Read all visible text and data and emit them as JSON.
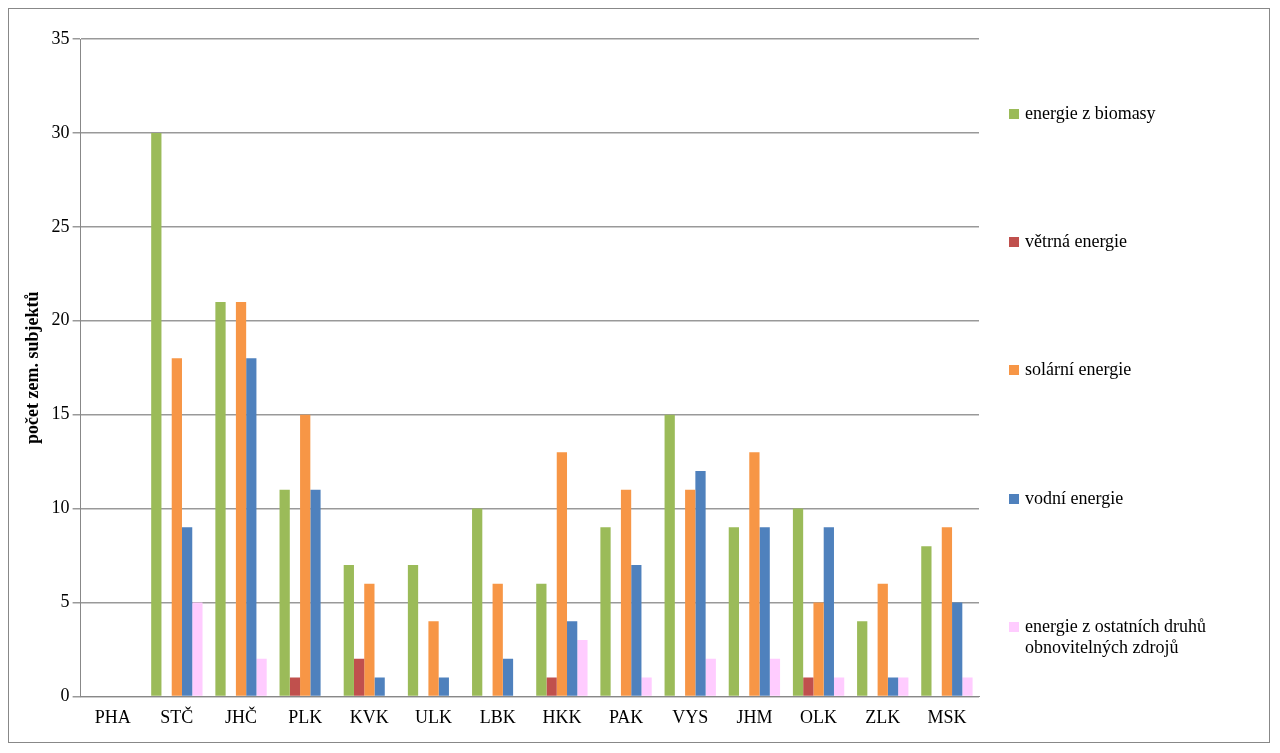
{
  "chart_data": {
    "type": "bar",
    "ylabel": "počet zem. subjektů",
    "categories": [
      "PHA",
      "STČ",
      "JHČ",
      "PLK",
      "KVK",
      "ULK",
      "LBK",
      "HKK",
      "PAK",
      "VYS",
      "JHM",
      "OLK",
      "ZLK",
      "MSK"
    ],
    "series": [
      {
        "name": "energie z biomasy",
        "color": "#9bbb59",
        "values": [
          0,
          30,
          21,
          11,
          7,
          7,
          10,
          6,
          9,
          15,
          9,
          10,
          4,
          8
        ]
      },
      {
        "name": "větrná energie",
        "color": "#c0504d",
        "values": [
          0,
          0,
          0,
          1,
          2,
          0,
          0,
          1,
          0,
          0,
          0,
          1,
          0,
          0
        ]
      },
      {
        "name": "solární energie",
        "color": "#f79646",
        "values": [
          0,
          18,
          21,
          15,
          6,
          4,
          6,
          13,
          11,
          11,
          13,
          5,
          6,
          9
        ]
      },
      {
        "name": "vodní energie",
        "color": "#4f81bd",
        "values": [
          0,
          9,
          18,
          11,
          1,
          1,
          2,
          4,
          7,
          12,
          9,
          9,
          1,
          5
        ]
      },
      {
        "name": "energie z ostatních druhů obnovitelných zdrojů",
        "color": "#ffccff",
        "values": [
          0,
          5,
          2,
          0,
          0,
          0,
          0,
          3,
          1,
          2,
          2,
          1,
          1,
          1
        ]
      }
    ],
    "ylim": [
      0,
      35
    ],
    "yticks": [
      0,
      5,
      10,
      15,
      20,
      25,
      30,
      35
    ],
    "grid": "y",
    "legend": "right"
  }
}
